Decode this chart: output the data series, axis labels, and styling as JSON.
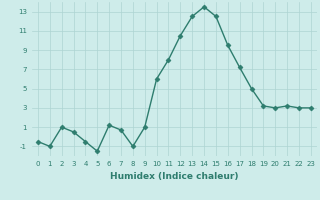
{
  "x": [
    0,
    1,
    2,
    3,
    4,
    5,
    6,
    7,
    8,
    9,
    10,
    11,
    12,
    13,
    14,
    15,
    16,
    17,
    18,
    19,
    20,
    21,
    22,
    23
  ],
  "y": [
    -0.5,
    -1,
    1,
    0.5,
    -0.5,
    -1.5,
    1.2,
    0.7,
    -1,
    1,
    6,
    8,
    10.5,
    12.5,
    13.5,
    12.5,
    9.5,
    7.2,
    5,
    3.2,
    3,
    3.2,
    3,
    3
  ],
  "line_color": "#2e7d6e",
  "marker": "D",
  "marker_size": 2.5,
  "background_color": "#ceecea",
  "grid_color": "#aed4d2",
  "xlabel": "Humidex (Indice chaleur)",
  "ylim": [
    -2,
    14
  ],
  "xlim": [
    -0.5,
    23.5
  ],
  "yticks": [
    -1,
    1,
    3,
    5,
    7,
    9,
    11,
    13
  ],
  "xticks": [
    0,
    1,
    2,
    3,
    4,
    5,
    6,
    7,
    8,
    9,
    10,
    11,
    12,
    13,
    14,
    15,
    16,
    17,
    18,
    19,
    20,
    21,
    22,
    23
  ],
  "tick_fontsize": 5.0,
  "xlabel_fontsize": 6.5,
  "line_width": 1.0
}
